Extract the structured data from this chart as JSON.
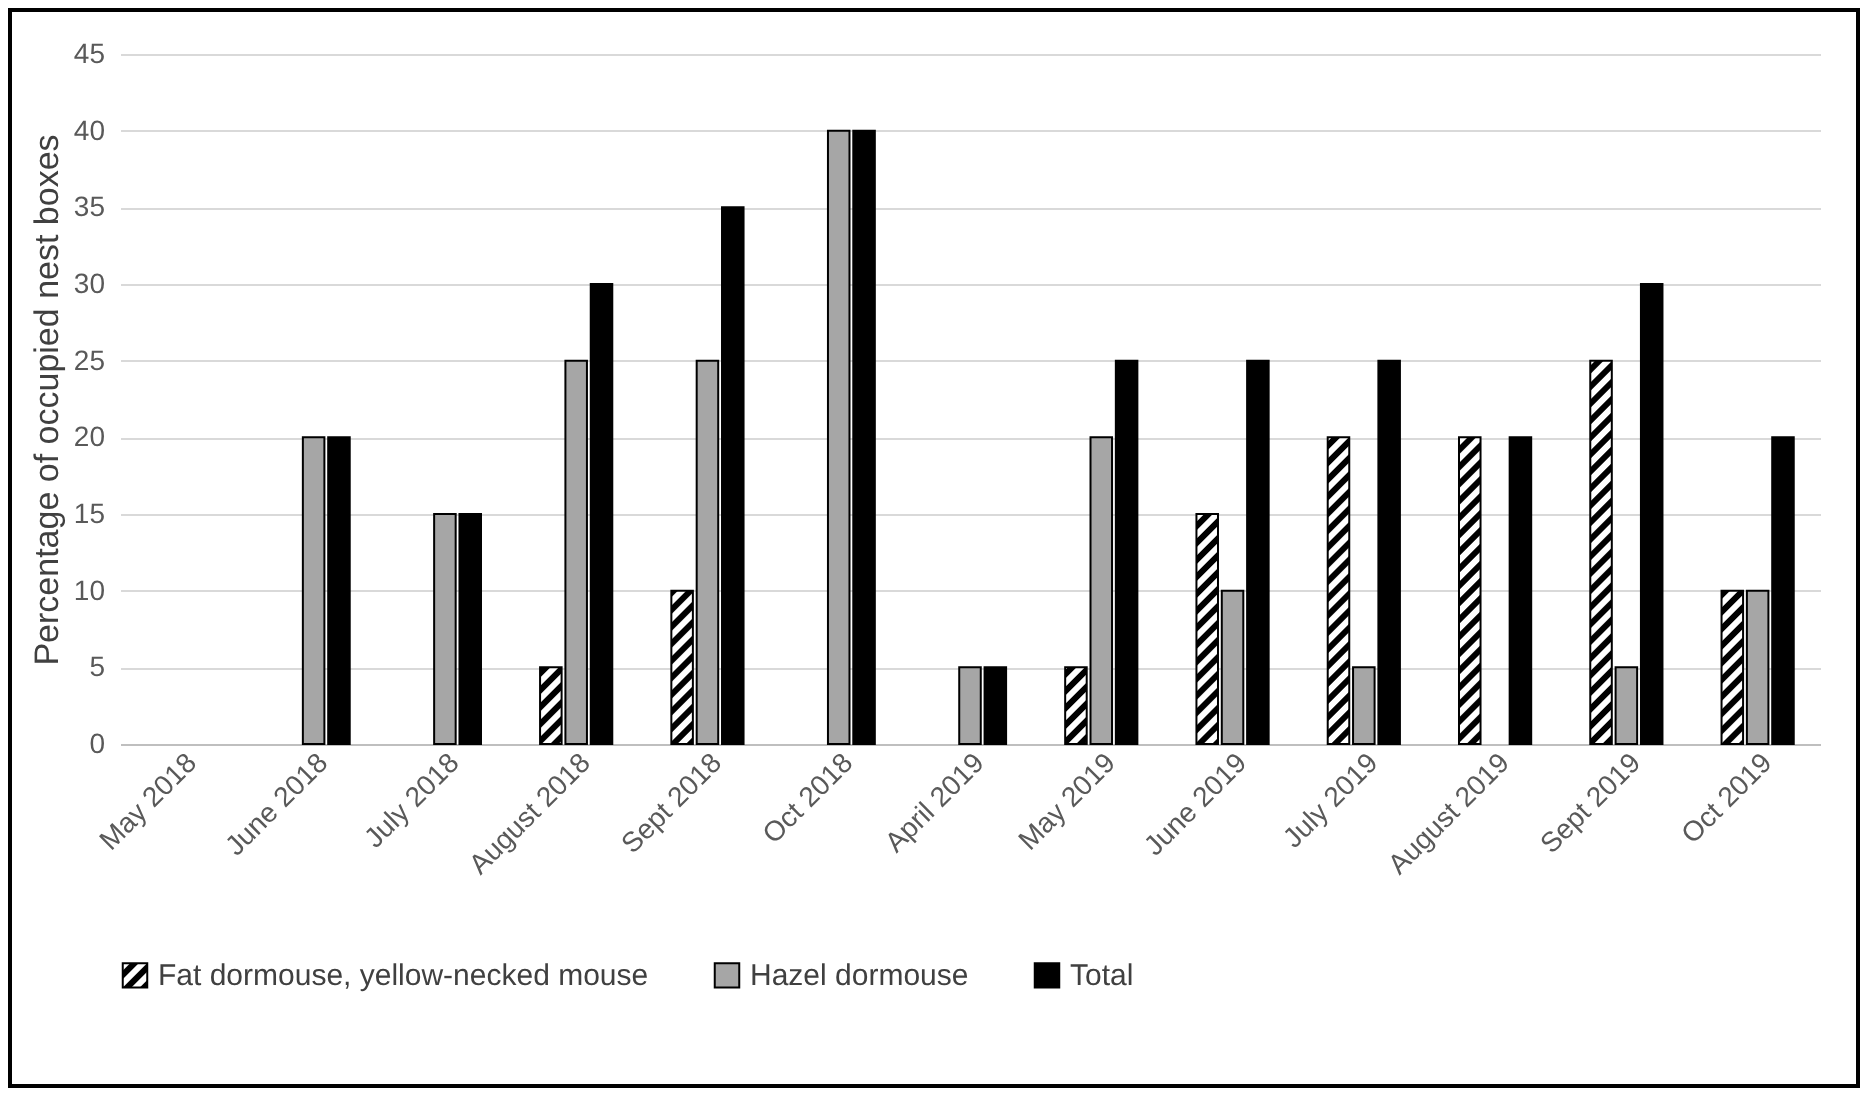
{
  "chart_data": {
    "type": "bar",
    "ylabel": "Percentage of occupied nest boxes",
    "categories": [
      "May 2018",
      "June 2018",
      "July 2018",
      "August 2018",
      "Sept 2018",
      "Oct 2018",
      "April 2019",
      "May 2019",
      "June 2019",
      "July 2019",
      "August 2019",
      "Sept 2019",
      "Oct 2019"
    ],
    "series": [
      {
        "name": "Fat dormouse, yellow-necked mouse",
        "color": "#000000",
        "values": [
          null,
          null,
          null,
          5,
          10,
          null,
          null,
          5,
          15,
          20,
          20,
          25,
          10
        ]
      },
      {
        "name": "Hazel dormouse",
        "color": "#a6a6a6",
        "values": [
          null,
          20,
          15,
          25,
          25,
          40,
          5,
          20,
          10,
          5,
          null,
          5,
          10
        ]
      },
      {
        "name": "Total",
        "color": "#000000",
        "values": [
          null,
          20,
          15,
          30,
          35,
          40,
          5,
          25,
          25,
          25,
          20,
          30,
          20
        ]
      }
    ],
    "ylim": [
      0,
      45
    ],
    "yticks": [
      0,
      5,
      10,
      15,
      20,
      25,
      30,
      35,
      40,
      45
    ],
    "grid": "y",
    "legend": "bottom"
  }
}
